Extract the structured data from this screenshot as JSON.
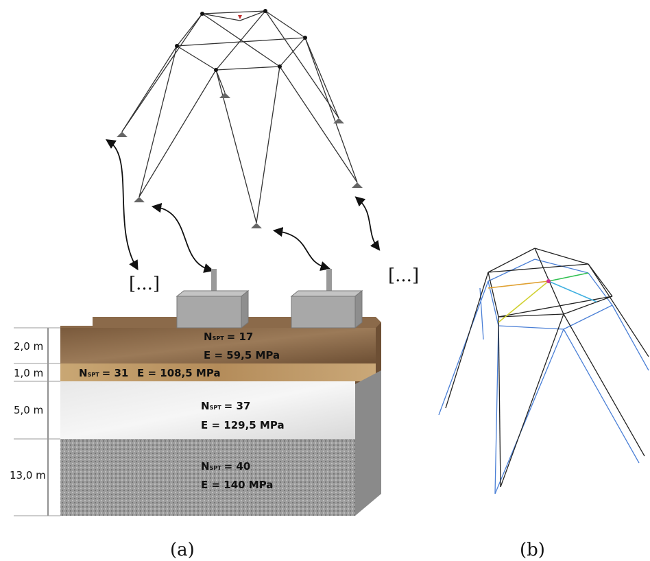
{
  "panel_a": {
    "ellipsis_left": "[...]",
    "ellipsis_right": "[...]",
    "layers": [
      {
        "thickness": "2,0 m",
        "n_symbol": "N",
        "n_subscript": "SPT",
        "n_value": "= 17",
        "modulus": "E = 59,5 MPa"
      },
      {
        "thickness": "1,0 m",
        "n_symbol": "N",
        "n_subscript": "SPT",
        "n_value": "= 31",
        "modulus": "E = 108,5 MPa"
      },
      {
        "thickness": "5,0 m",
        "n_symbol": "N",
        "n_subscript": "SPT",
        "n_value": "= 37",
        "modulus": "E = 129,5 MPa"
      },
      {
        "thickness": "13,0 m",
        "n_symbol": "N",
        "n_subscript": "SPT",
        "n_value": "= 40",
        "modulus": "E = 140 MPa"
      }
    ],
    "caption": "(a)"
  },
  "panel_b": {
    "caption": "(b)"
  }
}
